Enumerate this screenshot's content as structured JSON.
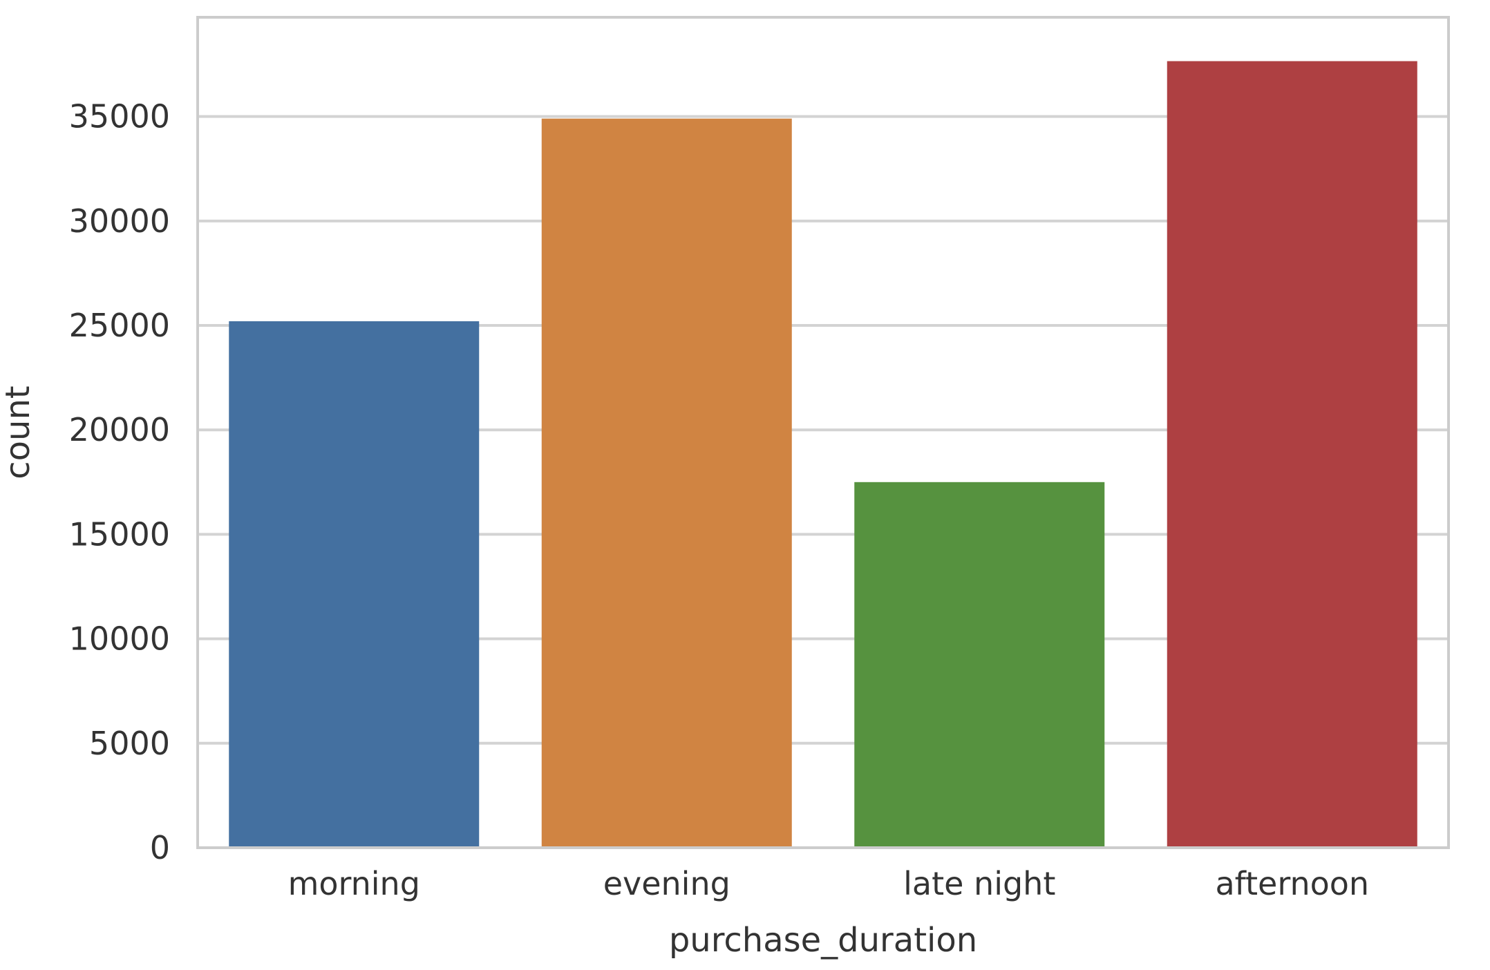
{
  "chart_data": {
    "type": "bar",
    "title": "",
    "xlabel": "purchase_duration",
    "ylabel": "count",
    "categories": [
      "morning",
      "evening",
      "late night",
      "afternoon"
    ],
    "values": [
      25200,
      34900,
      17500,
      37650
    ],
    "colors": [
      "#4470a0",
      "#d08442",
      "#56923f",
      "#ae4042"
    ],
    "ylim": [
      0,
      39750
    ],
    "yticks": [
      0,
      5000,
      10000,
      15000,
      20000,
      25000,
      30000,
      35000
    ],
    "ytick_labels": [
      "0",
      "5000",
      "10000",
      "15000",
      "20000",
      "25000",
      "30000",
      "35000"
    ],
    "grid": true,
    "gridline_color": "#d3d3d3",
    "legend": "none"
  }
}
